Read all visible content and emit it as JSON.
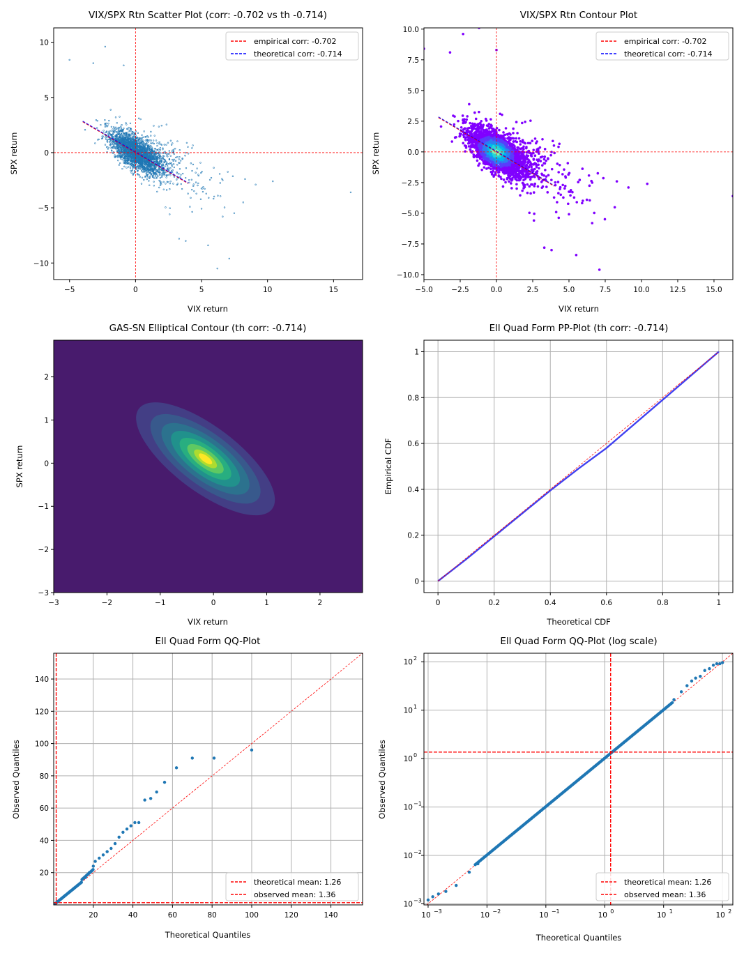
{
  "figure": {
    "panels": [
      {
        "title": "VIX/SPX Rtn Scatter Plot (corr: -0.702 vs th -0.714)",
        "xlabel": "VIX return",
        "ylabel": "SPX return"
      },
      {
        "title": "VIX/SPX Rtn Contour Plot",
        "xlabel": "VIX return",
        "ylabel": "SPX return"
      },
      {
        "title": "GAS-SN Elliptical Contour (th corr: -0.714)",
        "xlabel": "VIX return",
        "ylabel": "SPX return"
      },
      {
        "title": "Ell Quad Form PP-Plot (th corr: -0.714)",
        "xlabel": "Theoretical CDF",
        "ylabel": "Empirical CDF"
      },
      {
        "title": "Ell Quad Form QQ-Plot",
        "xlabel": "Theoretical Quantiles",
        "ylabel": "Observed Quantiles"
      },
      {
        "title": "Ell Quad Form QQ-Plot (log scale)",
        "xlabel": "Theoretical Quantiles",
        "ylabel": "Observed Quantiles"
      }
    ]
  },
  "chart_data": [
    {
      "type": "scatter",
      "title": "VIX/SPX Rtn Scatter Plot (corr: -0.702 vs th -0.714)",
      "xlabel": "VIX return",
      "ylabel": "SPX return",
      "xlim": [
        -6.2,
        17.2
      ],
      "ylim": [
        -11.5,
        11.3
      ],
      "xticks": [
        -5,
        0,
        5,
        10,
        15
      ],
      "yticks": [
        -10,
        -5,
        0,
        5,
        10
      ],
      "grid": false,
      "legend_position": "top-right",
      "legend": [
        {
          "label": "empirical corr: -0.702",
          "color": "#ff0000",
          "style": "dashed"
        },
        {
          "label": "theoretical corr: -0.714",
          "color": "#0000ff",
          "style": "dashed"
        }
      ],
      "reference_lines": {
        "x": 0,
        "y": 0,
        "color": "#ff0000"
      },
      "fit_line": {
        "x": [
          -4,
          4
        ],
        "y": [
          2.8,
          -2.8
        ]
      },
      "marker_color": "#1f77b4",
      "core_cluster": {
        "center": [
          0,
          0
        ],
        "x_spread": 1.0,
        "correlation": -0.702
      },
      "outliers": [
        [
          -5,
          8.4
        ],
        [
          -3.2,
          8.1
        ],
        [
          -2.3,
          9.6
        ],
        [
          -0.9,
          7.9
        ],
        [
          6.2,
          -10.5
        ],
        [
          7.1,
          -9.6
        ],
        [
          5.5,
          -8.4
        ],
        [
          3.8,
          -8.0
        ],
        [
          3.3,
          -7.8
        ],
        [
          10.4,
          -2.6
        ],
        [
          9.1,
          -2.9
        ],
        [
          16.3,
          -3.6
        ],
        [
          8.3,
          -2.4
        ],
        [
          6.6,
          -5.8
        ]
      ]
    },
    {
      "type": "scatter",
      "title": "VIX/SPX Rtn Contour Plot",
      "xlabel": "VIX return",
      "ylabel": "SPX return",
      "xlim": [
        -5,
        16.3
      ],
      "ylim": [
        -10.4,
        10.1
      ],
      "xticks": [
        -5.0,
        -2.5,
        0.0,
        2.5,
        5.0,
        7.5,
        10.0,
        12.5,
        15.0
      ],
      "yticks": [
        -10.0,
        -7.5,
        -5.0,
        -2.5,
        0.0,
        2.5,
        5.0,
        7.5,
        10.0
      ],
      "xtick_labels": [
        "−5.0",
        "−2.5",
        "0.0",
        "2.5",
        "5.0",
        "7.5",
        "10.0",
        "12.5",
        "15.0"
      ],
      "ytick_labels": [
        "−10.0",
        "−7.5",
        "−5.0",
        "−2.5",
        "0.0",
        "2.5",
        "5.0",
        "7.5",
        "10.0"
      ],
      "grid": false,
      "legend_position": "top-right",
      "legend": [
        {
          "label": "empirical corr: -0.702",
          "color": "#ff0000",
          "style": "dashed"
        },
        {
          "label": "theoretical corr: -0.714",
          "color": "#0000ff",
          "style": "dashed"
        }
      ],
      "reference_lines": {
        "x": 0,
        "y": 0,
        "color": "#ff0000"
      },
      "fit_line": {
        "x": [
          -4,
          4
        ],
        "y": [
          2.8,
          -2.8
        ]
      },
      "density_colors": [
        "#8000ff",
        "#5a3cfb",
        "#2c7ef2",
        "#00b5eb",
        "#2ad4d4",
        "#80ffb4"
      ],
      "outliers": [
        [
          -5,
          8.4
        ],
        [
          -3.2,
          8.1
        ],
        [
          -2.3,
          9.6
        ],
        [
          0,
          8.3
        ],
        [
          6.2,
          -10.5
        ],
        [
          7.1,
          -9.6
        ],
        [
          5.5,
          -8.4
        ],
        [
          3.8,
          -8.0
        ],
        [
          3.3,
          -7.8
        ],
        [
          10.4,
          -2.6
        ],
        [
          9.1,
          -2.9
        ],
        [
          16.3,
          -3.6
        ],
        [
          8.3,
          -2.4
        ],
        [
          -1.2,
          10.1
        ],
        [
          6.6,
          -5.8
        ]
      ]
    },
    {
      "type": "contour",
      "title": "GAS-SN Elliptical Contour (th corr: -0.714)",
      "xlabel": "VIX return",
      "ylabel": "SPX return",
      "xlim": [
        -3,
        2.8
      ],
      "ylim": [
        -3,
        2.85
      ],
      "xticks": [
        -3,
        -2,
        -1,
        0,
        1,
        2
      ],
      "yticks": [
        -3,
        -2,
        -1,
        0,
        1,
        2
      ],
      "center": [
        -0.15,
        0.1
      ],
      "correlation": -0.714,
      "colormap": [
        "#481b6d",
        "#433e85",
        "#38598c",
        "#2c728e",
        "#21918c",
        "#28ae80",
        "#5ec962",
        "#addc30",
        "#fde725"
      ]
    },
    {
      "type": "line",
      "title": "Ell Quad Form PP-Plot (th corr: -0.714)",
      "xlabel": "Theoretical CDF",
      "ylabel": "Empirical CDF",
      "xlim": [
        -0.05,
        1.05
      ],
      "ylim": [
        -0.05,
        1.05
      ],
      "xticks": [
        0.0,
        0.2,
        0.4,
        0.6,
        0.8,
        1.0
      ],
      "yticks": [
        0.0,
        0.2,
        0.4,
        0.6,
        0.8,
        1.0
      ],
      "grid": true,
      "series": [
        {
          "x": [
            0.0,
            0.1,
            0.2,
            0.3,
            0.4,
            0.5,
            0.6,
            0.7,
            0.8,
            0.9,
            1.0
          ],
          "y": [
            0.0,
            0.095,
            0.195,
            0.295,
            0.395,
            0.49,
            0.58,
            0.685,
            0.79,
            0.895,
            1.0
          ],
          "color": "#4040f0"
        }
      ],
      "reference_line": {
        "x": [
          0,
          1
        ],
        "y": [
          0,
          1
        ],
        "color": "#ff0000",
        "style": "dashed"
      }
    },
    {
      "type": "scatter",
      "title": "Ell Quad Form QQ-Plot",
      "xlabel": "Theoretical Quantiles",
      "ylabel": "Observed Quantiles",
      "xlim": [
        0,
        156
      ],
      "ylim": [
        0,
        156
      ],
      "xticks": [
        20,
        40,
        60,
        80,
        100,
        120,
        140
      ],
      "yticks": [
        20,
        40,
        60,
        80,
        100,
        120,
        140
      ],
      "grid": true,
      "legend_position": "bottom-right",
      "legend": [
        {
          "label": "theoretical mean: 1.26",
          "color": "#ff0000",
          "style": "dashed"
        },
        {
          "label": "observed mean: 1.36",
          "color": "#ff0000",
          "style": "dashed"
        }
      ],
      "vline": 1.26,
      "hline": 1.36,
      "points": [
        [
          0.5,
          0.5
        ],
        [
          2,
          2
        ],
        [
          4,
          4
        ],
        [
          6,
          6
        ],
        [
          8,
          8
        ],
        [
          10,
          10
        ],
        [
          12,
          12
        ],
        [
          14,
          14
        ],
        [
          16,
          17
        ],
        [
          18,
          20
        ],
        [
          20,
          24
        ],
        [
          21,
          27
        ],
        [
          23,
          29
        ],
        [
          25,
          31
        ],
        [
          27,
          33
        ],
        [
          29,
          35
        ],
        [
          31,
          38
        ],
        [
          33,
          42
        ],
        [
          35,
          45
        ],
        [
          37,
          47
        ],
        [
          39,
          49
        ],
        [
          41,
          51
        ],
        [
          43,
          51
        ],
        [
          46,
          65
        ],
        [
          49,
          66
        ],
        [
          52,
          70
        ],
        [
          56,
          76
        ],
        [
          62,
          85
        ],
        [
          70,
          91
        ],
        [
          81,
          91
        ],
        [
          100,
          96
        ]
      ],
      "reference_line": {
        "x": [
          0,
          156
        ],
        "y": [
          0,
          156
        ]
      },
      "marker_color": "#1f77b4"
    },
    {
      "type": "scatter",
      "title": "Ell Quad Form QQ-Plot (log scale)",
      "xlabel": "Theoretical Quantiles",
      "ylabel": "Observed Quantiles",
      "xscale": "log",
      "yscale": "log",
      "xlim": [
        0.00085,
        150
      ],
      "ylim": [
        0.00095,
        150
      ],
      "xticks": [
        0.001,
        0.01,
        0.1,
        1,
        10,
        100
      ],
      "yticks": [
        0.001,
        0.01,
        0.1,
        1,
        10,
        100
      ],
      "tick_bases": [
        "10",
        "10",
        "10",
        "10",
        "10",
        "10"
      ],
      "tick_exps": [
        "−3",
        "−2",
        "−1",
        "0",
        "1",
        "2"
      ],
      "grid": true,
      "legend_position": "bottom-right",
      "legend": [
        {
          "label": "theoretical mean: 1.26",
          "color": "#ff0000",
          "style": "dashed"
        },
        {
          "label": "observed mean: 1.36",
          "color": "#ff0000",
          "style": "dashed"
        }
      ],
      "vline": 1.26,
      "hline": 1.36,
      "points_low": [
        [
          0.001,
          0.0012
        ],
        [
          0.0012,
          0.0014
        ],
        [
          0.0015,
          0.0016
        ],
        [
          0.002,
          0.0018
        ],
        [
          0.003,
          0.0024
        ],
        [
          0.005,
          0.0045
        ],
        [
          0.007,
          0.0067
        ]
      ],
      "points_high": [
        [
          15,
          16.5
        ],
        [
          20,
          24
        ],
        [
          25,
          32
        ],
        [
          30,
          40
        ],
        [
          35,
          46
        ],
        [
          42,
          50
        ],
        [
          50,
          66
        ],
        [
          60,
          72
        ],
        [
          70,
          85
        ],
        [
          80,
          91
        ],
        [
          90,
          91
        ],
        [
          100,
          96
        ]
      ],
      "reference_line": {
        "x": [
          0.00085,
          150
        ],
        "y": [
          0.00085,
          150
        ]
      },
      "marker_color": "#1f77b4"
    }
  ]
}
